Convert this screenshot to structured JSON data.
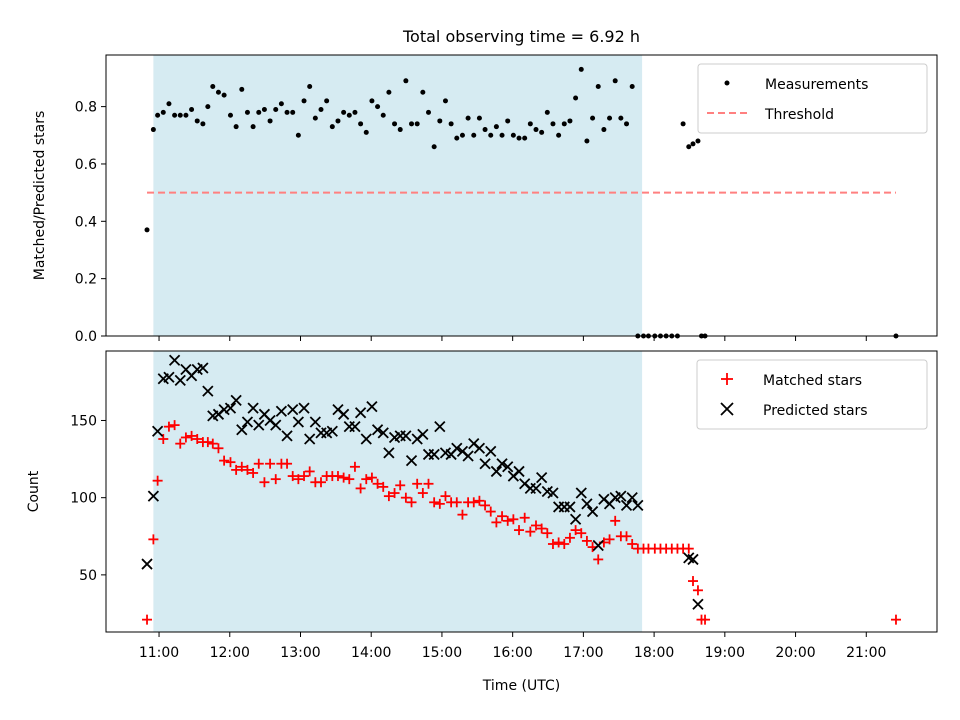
{
  "figure": {
    "title": "Total observing time = 6.92 h"
  },
  "chart_data": [
    {
      "type": "scatter",
      "panel": "top",
      "title": "Total observing time = 6.92 h",
      "xlabel": "",
      "ylabel": "Matched/Predicted stars",
      "xlim": [
        10.25,
        22.0
      ],
      "ylim": [
        0.0,
        0.98
      ],
      "yticks": [
        0.0,
        0.2,
        0.4,
        0.6,
        0.8
      ],
      "ytick_labels": [
        "0.0",
        "0.2",
        "0.4",
        "0.6",
        "0.8"
      ],
      "grid": false,
      "legend_position": "top-right",
      "shaded_interval": {
        "x": [
          10.92,
          17.83
        ],
        "color": "#add8e6"
      },
      "threshold": {
        "name": "Threshold",
        "y": 0.5,
        "x": [
          10.83,
          21.42
        ],
        "color": "#ff8080",
        "style": "dashed"
      },
      "series": [
        {
          "name": "Measurements",
          "marker": "dot",
          "color": "#000000",
          "x": [
            10.83,
            10.92,
            10.98,
            11.06,
            11.14,
            11.22,
            11.3,
            11.38,
            11.46,
            11.54,
            11.62,
            11.69,
            11.76,
            11.84,
            11.92,
            12.01,
            12.09,
            12.17,
            12.25,
            12.33,
            12.41,
            12.49,
            12.57,
            12.65,
            12.73,
            12.81,
            12.89,
            12.97,
            13.05,
            13.13,
            13.21,
            13.29,
            13.37,
            13.45,
            13.53,
            13.61,
            13.69,
            13.77,
            13.85,
            13.93,
            14.01,
            14.09,
            14.17,
            14.25,
            14.33,
            14.41,
            14.49,
            14.57,
            14.65,
            14.73,
            14.81,
            14.89,
            14.97,
            15.05,
            15.13,
            15.21,
            15.29,
            15.37,
            15.45,
            15.53,
            15.61,
            15.69,
            15.77,
            15.85,
            15.93,
            16.01,
            16.09,
            16.17,
            16.25,
            16.33,
            16.41,
            16.49,
            16.57,
            16.65,
            16.73,
            16.81,
            16.89,
            16.97,
            17.05,
            17.13,
            17.21,
            17.29,
            17.37,
            17.45,
            17.53,
            17.61,
            17.69,
            17.77,
            17.85,
            17.92,
            18.01,
            18.09,
            18.17,
            18.25,
            18.33,
            18.41,
            18.49,
            18.55,
            18.62,
            18.67,
            18.72,
            21.42
          ],
          "y": [
            0.37,
            0.72,
            0.77,
            0.78,
            0.81,
            0.77,
            0.77,
            0.77,
            0.79,
            0.75,
            0.74,
            0.8,
            0.87,
            0.85,
            0.84,
            0.77,
            0.73,
            0.86,
            0.78,
            0.73,
            0.78,
            0.79,
            0.75,
            0.79,
            0.81,
            0.78,
            0.78,
            0.7,
            0.82,
            0.87,
            0.76,
            0.79,
            0.82,
            0.73,
            0.75,
            0.78,
            0.77,
            0.78,
            0.74,
            0.71,
            0.82,
            0.8,
            0.77,
            0.85,
            0.74,
            0.72,
            0.89,
            0.74,
            0.74,
            0.85,
            0.78,
            0.66,
            0.75,
            0.82,
            0.74,
            0.69,
            0.7,
            0.76,
            0.7,
            0.76,
            0.72,
            0.7,
            0.73,
            0.7,
            0.75,
            0.7,
            0.69,
            0.69,
            0.74,
            0.72,
            0.71,
            0.78,
            0.74,
            0.7,
            0.74,
            0.75,
            0.83,
            0.93,
            0.68,
            0.76,
            0.87,
            0.72,
            0.76,
            0.89,
            0.76,
            0.74,
            0.87,
            0.0,
            0.0,
            0.0,
            0.0,
            0.0,
            0.0,
            0.0,
            0.0,
            0.74,
            0.66,
            0.67,
            0.68,
            0.0,
            0.0,
            0.0
          ]
        }
      ]
    },
    {
      "type": "scatter",
      "panel": "bottom",
      "xlabel": "Time (UTC)",
      "ylabel": "Count",
      "xlim": [
        10.25,
        22.0
      ],
      "ylim": [
        13,
        195
      ],
      "xticks": [
        11,
        12,
        13,
        14,
        15,
        16,
        17,
        18,
        19,
        20,
        21
      ],
      "xtick_labels": [
        "11:00",
        "12:00",
        "13:00",
        "14:00",
        "15:00",
        "16:00",
        "17:00",
        "18:00",
        "19:00",
        "20:00",
        "21:00"
      ],
      "yticks": [
        50,
        100,
        150
      ],
      "ytick_labels": [
        "50",
        "100",
        "150"
      ],
      "grid": false,
      "legend_position": "top-right",
      "shaded_interval": {
        "x": [
          10.92,
          17.83
        ],
        "color": "#add8e6"
      },
      "series": [
        {
          "name": "Matched stars",
          "marker": "plus",
          "color": "#ff0000",
          "x": [
            10.83,
            10.92,
            10.98,
            11.06,
            11.14,
            11.22,
            11.3,
            11.38,
            11.46,
            11.54,
            11.62,
            11.69,
            11.76,
            11.84,
            11.92,
            12.01,
            12.09,
            12.17,
            12.25,
            12.33,
            12.41,
            12.49,
            12.57,
            12.65,
            12.73,
            12.81,
            12.89,
            12.97,
            13.05,
            13.13,
            13.21,
            13.29,
            13.37,
            13.45,
            13.53,
            13.61,
            13.69,
            13.77,
            13.85,
            13.93,
            14.01,
            14.09,
            14.17,
            14.25,
            14.33,
            14.41,
            14.49,
            14.57,
            14.65,
            14.73,
            14.81,
            14.89,
            14.97,
            15.05,
            15.13,
            15.21,
            15.29,
            15.37,
            15.45,
            15.53,
            15.61,
            15.69,
            15.77,
            15.85,
            15.93,
            16.01,
            16.09,
            16.17,
            16.25,
            16.33,
            16.41,
            16.49,
            16.57,
            16.65,
            16.73,
            16.81,
            16.89,
            16.97,
            17.05,
            17.13,
            17.21,
            17.29,
            17.37,
            17.45,
            17.53,
            17.61,
            17.69,
            17.77,
            17.85,
            17.92,
            18.01,
            18.09,
            18.17,
            18.25,
            18.33,
            18.41,
            18.49,
            18.55,
            18.62,
            18.67,
            18.72,
            21.42
          ],
          "y": [
            21,
            73,
            111,
            138,
            146,
            147,
            135,
            139,
            140,
            138,
            136,
            136,
            135,
            132,
            124,
            123,
            118,
            120,
            118,
            116,
            122,
            110,
            122,
            112,
            122,
            122,
            114,
            112,
            114,
            117,
            110,
            110,
            114,
            114,
            114,
            113,
            112,
            120,
            106,
            112,
            113,
            109,
            107,
            101,
            103,
            108,
            100,
            97,
            109,
            103,
            109,
            97,
            96,
            101,
            97,
            97,
            89,
            97,
            97,
            98,
            95,
            91,
            84,
            88,
            85,
            86,
            79,
            87,
            78,
            82,
            80,
            77,
            70,
            71,
            70,
            74,
            79,
            77,
            72,
            68,
            60,
            71,
            73,
            85,
            75,
            75,
            70,
            67,
            67,
            67,
            67,
            67,
            67,
            67,
            67,
            67,
            67,
            46,
            40,
            21,
            21,
            21
          ]
        },
        {
          "name": "Predicted stars",
          "marker": "x",
          "color": "#000000",
          "x": [
            10.83,
            10.92,
            10.98,
            11.06,
            11.14,
            11.22,
            11.3,
            11.38,
            11.46,
            11.54,
            11.62,
            11.69,
            11.76,
            11.84,
            11.92,
            12.01,
            12.09,
            12.17,
            12.25,
            12.33,
            12.41,
            12.49,
            12.57,
            12.65,
            12.73,
            12.81,
            12.89,
            12.97,
            13.05,
            13.13,
            13.21,
            13.29,
            13.37,
            13.45,
            13.53,
            13.61,
            13.69,
            13.77,
            13.85,
            13.93,
            14.01,
            14.09,
            14.17,
            14.25,
            14.33,
            14.41,
            14.49,
            14.57,
            14.65,
            14.73,
            14.81,
            14.89,
            14.97,
            15.05,
            15.13,
            15.21,
            15.29,
            15.37,
            15.45,
            15.53,
            15.61,
            15.69,
            15.77,
            15.85,
            15.93,
            16.01,
            16.09,
            16.17,
            16.25,
            16.33,
            16.41,
            16.49,
            16.57,
            16.65,
            16.73,
            16.81,
            16.89,
            16.97,
            17.05,
            17.13,
            17.21,
            17.29,
            17.37,
            17.45,
            17.53,
            17.61,
            17.69,
            17.77,
            18.49,
            18.55,
            18.62
          ],
          "y": [
            57,
            101,
            143,
            177,
            178,
            189,
            176,
            183,
            179,
            183,
            184,
            169,
            153,
            154,
            157,
            158,
            163,
            144,
            149,
            158,
            147,
            154,
            150,
            147,
            156,
            140,
            157,
            149,
            158,
            138,
            149,
            142,
            142,
            143,
            157,
            154,
            146,
            146,
            155,
            138,
            159,
            144,
            142,
            129,
            139,
            140,
            140,
            124,
            138,
            141,
            128,
            128,
            146,
            129,
            128,
            132,
            130,
            127,
            135,
            132,
            122,
            130,
            117,
            122,
            120,
            114,
            117,
            109,
            106,
            106,
            113,
            104,
            103,
            94,
            94,
            94,
            86,
            103,
            96,
            91,
            69,
            99,
            96,
            100,
            101,
            95,
            100,
            95,
            61,
            60,
            31
          ]
        }
      ]
    }
  ]
}
